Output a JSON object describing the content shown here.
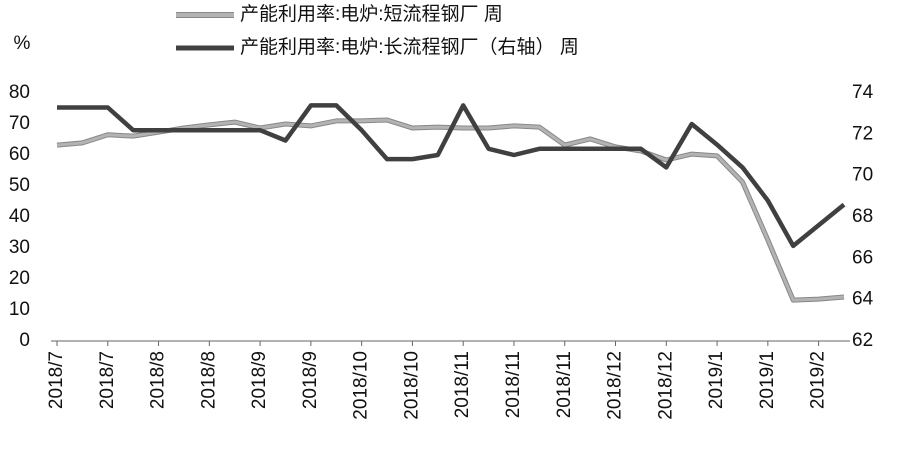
{
  "chart_data": {
    "type": "line",
    "y_unit_label": "%",
    "categories": [
      "2018/7",
      null,
      "2018/7",
      null,
      "2018/8",
      null,
      "2018/8",
      null,
      "2018/9",
      null,
      "2018/9",
      null,
      "2018/10",
      null,
      "2018/10",
      null,
      "2018/11",
      null,
      "2018/11",
      null,
      "2018/11",
      null,
      "2018/12",
      null,
      "2018/12",
      null,
      "2019/1",
      null,
      "2019/1",
      null,
      "2019/2",
      null
    ],
    "series": [
      {
        "name": "产能利用率:电炉:短流程钢厂 周",
        "color": "#b3b3b3",
        "axis": "y",
        "values": [
          63.2,
          63.9,
          66.5,
          66.1,
          67.4,
          68.7,
          69.7,
          70.6,
          68.7,
          70,
          69.4,
          71,
          71,
          71.3,
          68.7,
          69,
          68.7,
          68.7,
          69.4,
          69,
          63.2,
          65.2,
          62.6,
          61.3,
          58.4,
          60.3,
          59.7,
          51.3,
          32.6,
          13.2,
          13.5,
          14.2
        ]
      },
      {
        "name": "产能利用率:电炉:长流程钢厂（右轴） 周",
        "color": "#404040",
        "axis": "y2",
        "values": [
          73.3,
          73.3,
          73.3,
          72.2,
          72.2,
          72.2,
          72.2,
          72.2,
          72.2,
          71.7,
          73.4,
          73.4,
          72.2,
          70.8,
          70.8,
          71.0,
          73.4,
          71.3,
          71.0,
          71.3,
          71.3,
          71.3,
          71.3,
          71.3,
          70.4,
          72.5,
          71.5,
          70.4,
          68.8,
          66.6,
          67.6,
          68.6
        ]
      }
    ],
    "ylim": [
      0,
      80
    ],
    "yticks": [
      0,
      10,
      20,
      30,
      40,
      50,
      60,
      70,
      80
    ],
    "y2lim": [
      62,
      74
    ],
    "y2ticks": [
      62,
      64,
      66,
      68,
      70,
      72,
      74
    ],
    "grid": false
  }
}
